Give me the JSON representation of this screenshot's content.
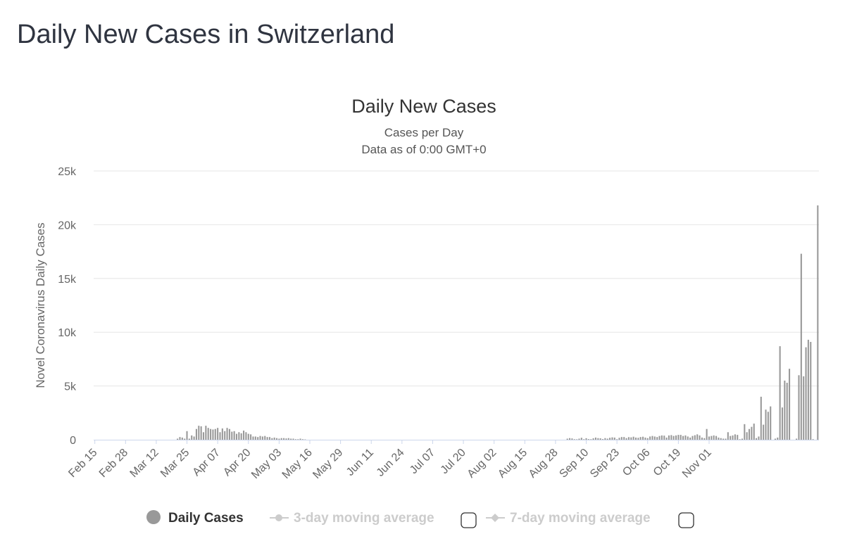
{
  "page": {
    "title": "Daily New Cases in Switzerland"
  },
  "chart_data": {
    "type": "bar",
    "title": "Daily New Cases",
    "subtitle_line1": "Cases per Day",
    "subtitle_line2": "Data as of 0:00 GMT+0",
    "xlabel": "",
    "ylabel": "Novel Coronavirus Daily Cases",
    "ylim": [
      0,
      25000
    ],
    "y_ticks": [
      0,
      5000,
      10000,
      15000,
      20000,
      25000
    ],
    "y_tick_labels": [
      "0",
      "5k",
      "10k",
      "15k",
      "20k",
      "25k"
    ],
    "x_start": "Feb 15",
    "x_tick_labels": [
      "Feb 15",
      "Feb 28",
      "Mar 12",
      "Mar 25",
      "Apr 07",
      "Apr 20",
      "May 03",
      "May 16",
      "May 29",
      "Jun 11",
      "Jun 24",
      "Jul 07",
      "Jul 20",
      "Aug 02",
      "Aug 15",
      "Aug 28",
      "Sep 10",
      "Sep 23",
      "Oct 06",
      "Oct 19",
      "Nov 01"
    ],
    "grid": true,
    "legend_position": "bottom",
    "series": [
      {
        "name": "Daily Cases",
        "color": "#999999",
        "values": [
          0,
          0,
          0,
          0,
          0,
          0,
          0,
          0,
          0,
          0,
          0,
          0,
          0,
          0,
          0,
          0,
          0,
          0,
          0,
          0,
          0,
          0,
          0,
          0,
          0,
          0,
          0,
          0,
          0,
          0,
          0,
          0,
          0,
          0,
          0,
          100,
          250,
          200,
          100,
          800,
          100,
          400,
          300,
          1000,
          1300,
          1250,
          700,
          1300,
          1100,
          1000,
          950,
          1000,
          1100,
          700,
          1050,
          800,
          1100,
          1000,
          750,
          800,
          550,
          700,
          600,
          850,
          700,
          550,
          500,
          300,
          300,
          250,
          350,
          300,
          350,
          250,
          250,
          150,
          200,
          150,
          100,
          150,
          150,
          120,
          150,
          100,
          100,
          50,
          50,
          100,
          50,
          30,
          0,
          0,
          0,
          0,
          0,
          0,
          0,
          0,
          0,
          0,
          0,
          0,
          0,
          0,
          0,
          0,
          0,
          0,
          0,
          0,
          0,
          0,
          0,
          0,
          0,
          0,
          0,
          0,
          0,
          0,
          0,
          0,
          0,
          0,
          0,
          0,
          0,
          0,
          0,
          0,
          0,
          0,
          0,
          0,
          0,
          0,
          0,
          0,
          0,
          0,
          0,
          0,
          0,
          0,
          0,
          0,
          0,
          0,
          0,
          0,
          0,
          0,
          0,
          0,
          0,
          0,
          0,
          0,
          0,
          0,
          0,
          0,
          0,
          0,
          0,
          0,
          0,
          0,
          0,
          0,
          0,
          0,
          0,
          0,
          0,
          0,
          0,
          0,
          0,
          0,
          0,
          0,
          0,
          0,
          0,
          0,
          0,
          0,
          0,
          0,
          0,
          0,
          0,
          0,
          0,
          0,
          0,
          0,
          0,
          0,
          100,
          150,
          120,
          50,
          40,
          100,
          180,
          50,
          140,
          60,
          50,
          130,
          200,
          150,
          130,
          60,
          150,
          100,
          180,
          220,
          200,
          50,
          180,
          250,
          250,
          150,
          240,
          220,
          280,
          200,
          180,
          250,
          280,
          200,
          150,
          300,
          350,
          300,
          250,
          350,
          400,
          380,
          200,
          400,
          430,
          350,
          400,
          450,
          450,
          350,
          400,
          300,
          200,
          350,
          420,
          500,
          400,
          200,
          150,
          1000,
          300,
          350,
          400,
          350,
          200,
          150,
          100,
          100,
          700,
          350,
          400,
          500,
          450,
          50,
          100,
          1450,
          700,
          1000,
          1200,
          1500,
          150,
          300,
          4000,
          1400,
          2800,
          2600,
          3100,
          0,
          100,
          200,
          8700,
          3000,
          5500,
          5300,
          6600,
          0,
          0,
          100,
          6000,
          17300,
          5900,
          8600,
          9300,
          9100,
          50,
          0,
          21800
        ]
      }
    ],
    "legend": [
      {
        "label": "Daily Cases",
        "active": true
      },
      {
        "label": "3-day moving average",
        "active": false
      },
      {
        "label": "7-day moving average",
        "active": false
      }
    ]
  }
}
